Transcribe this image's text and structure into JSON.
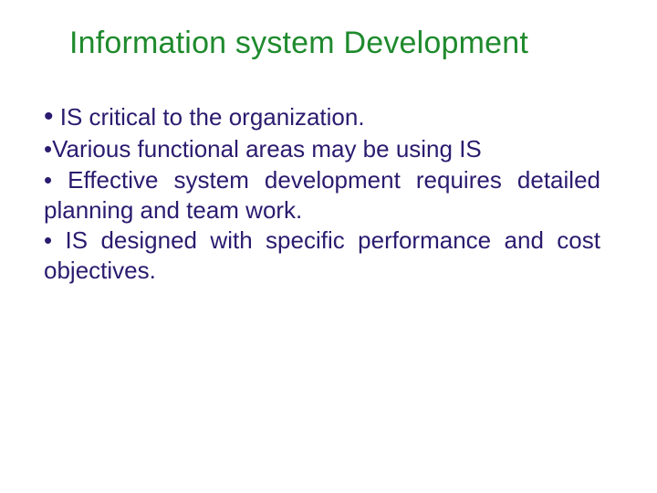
{
  "colors": {
    "background": "#ffffff",
    "title": "#1f8a2d",
    "body": "#2b1b6f"
  },
  "typography": {
    "title_fontsize": 34,
    "body_fontsize": 26,
    "font_family": "Arial"
  },
  "title": "Information system Development",
  "bullets": {
    "b1_prefix": "•",
    "b1_text": " IS critical to the organization.",
    "b2": "•Various functional areas may be using IS",
    "b3": "• Effective system development requires detailed planning and team work.",
    "b4": "• IS designed with specific performance and cost objectives."
  }
}
